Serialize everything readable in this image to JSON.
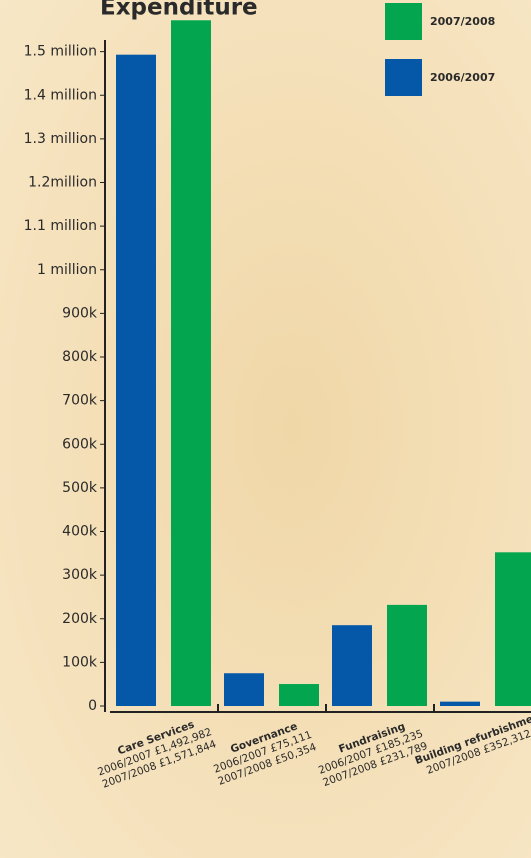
{
  "chart_data": {
    "type": "bar",
    "title": "Expenditure",
    "categories": [
      "Care Services",
      "Governance",
      "Fundraising",
      "Building refurbishment"
    ],
    "series": [
      {
        "name": "2006/2007",
        "color": "#0557a8",
        "values": [
          1492982,
          75111,
          185235,
          10000
        ],
        "value_labels": [
          "£1,492,982",
          "£75,111",
          "£185,235",
          null
        ]
      },
      {
        "name": "2007/2008",
        "color": "#03a64f",
        "values": [
          1571844,
          50354,
          231789,
          352312
        ],
        "value_labels": [
          "£1,571,844",
          "£50,354",
          "£231,789",
          "£352,312"
        ]
      }
    ],
    "ylim": [
      0,
      1600000
    ],
    "yticks": [
      {
        "value": 0,
        "label": "0"
      },
      {
        "value": 100000,
        "label": "100k"
      },
      {
        "value": 200000,
        "label": "200k"
      },
      {
        "value": 300000,
        "label": "300k"
      },
      {
        "value": 400000,
        "label": "400k"
      },
      {
        "value": 500000,
        "label": "500k"
      },
      {
        "value": 600000,
        "label": "600k"
      },
      {
        "value": 700000,
        "label": "700k"
      },
      {
        "value": 800000,
        "label": "800k"
      },
      {
        "value": 900000,
        "label": "900k"
      },
      {
        "value": 1000000,
        "label": "1 million"
      },
      {
        "value": 1100000,
        "label": "1.1 million"
      },
      {
        "value": 1200000,
        "label": "1.2million"
      },
      {
        "value": 1300000,
        "label": "1.3 million"
      },
      {
        "value": 1400000,
        "label": "1.4 million"
      },
      {
        "value": 1500000,
        "label": "1.5 million"
      }
    ],
    "legend": "top-right"
  }
}
